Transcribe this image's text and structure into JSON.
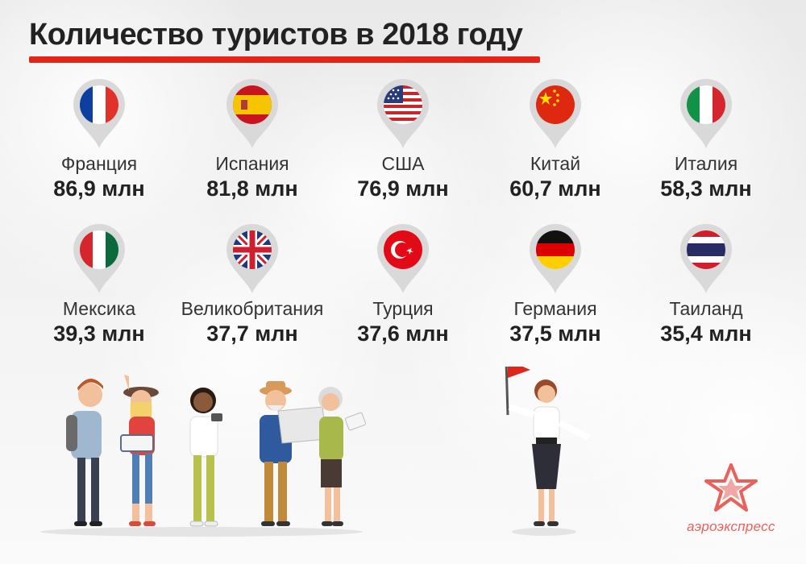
{
  "title": "Количество туристов в 2018 году",
  "countries": [
    {
      "name": "Франция",
      "value": "86,9 млн",
      "flag": "france-flag"
    },
    {
      "name": "Испания",
      "value": "81,8 млн",
      "flag": "spain-flag"
    },
    {
      "name": "США",
      "value": "76,9 млн",
      "flag": "usa-flag"
    },
    {
      "name": "Китай",
      "value": "60,7 млн",
      "flag": "china-flag"
    },
    {
      "name": "Италия",
      "value": "58,3 млн",
      "flag": "italy-flag"
    },
    {
      "name": "Мексика",
      "value": "39,3 млн",
      "flag": "mexico-flag"
    },
    {
      "name": "Великобритания",
      "value": "37,7 млн",
      "flag": "uk-flag"
    },
    {
      "name": "Турция",
      "value": "37,6 млн",
      "flag": "turkey-flag"
    },
    {
      "name": "Германия",
      "value": "37,5 млн",
      "flag": "germany-flag"
    },
    {
      "name": "Таиланд",
      "value": "35,4 млн",
      "flag": "thailand-flag"
    }
  ],
  "logo": {
    "text": "аэроэкспресс"
  },
  "colors": {
    "accent": "#e1251b",
    "logo": "#e8615a",
    "pin": "#d9d9d9"
  }
}
